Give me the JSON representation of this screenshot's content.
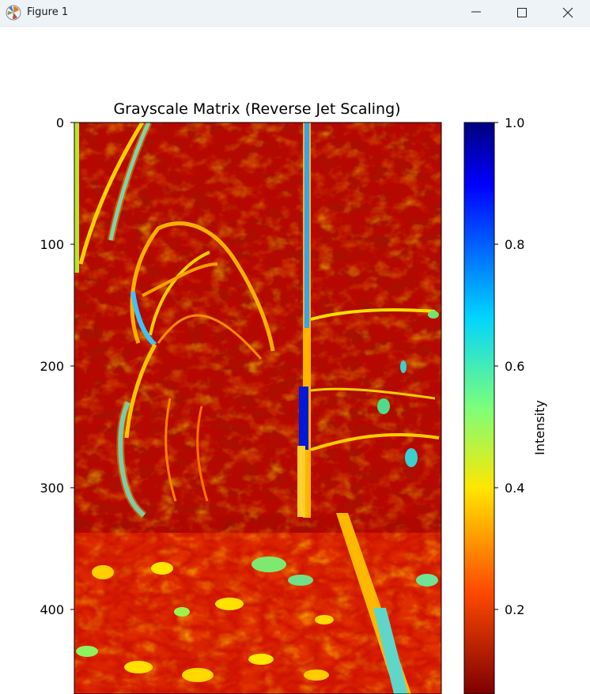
{
  "window": {
    "title": "Figure 1",
    "icons": {
      "app": "matplotlib-icon",
      "minimize": "minimize-icon",
      "maximize": "maximize-icon",
      "close": "close-icon"
    }
  },
  "chart_data": {
    "type": "heatmap",
    "title": "Grayscale Matrix (Reverse Jet Scaling)",
    "colormap": "jet_r",
    "y_ticks": [
      "0",
      "100",
      "200",
      "300",
      "400"
    ],
    "y_tick_values": [
      0,
      100,
      200,
      300,
      400
    ],
    "ylim": [
      0,
      470
    ],
    "colorbar": {
      "label": "Intensity",
      "ticks": [
        "1.0",
        "0.8",
        "0.6",
        "0.4",
        "0.2"
      ],
      "tick_values": [
        1.0,
        0.8,
        0.6,
        0.4,
        0.2
      ],
      "range": [
        0.04,
        1.0
      ]
    }
  }
}
